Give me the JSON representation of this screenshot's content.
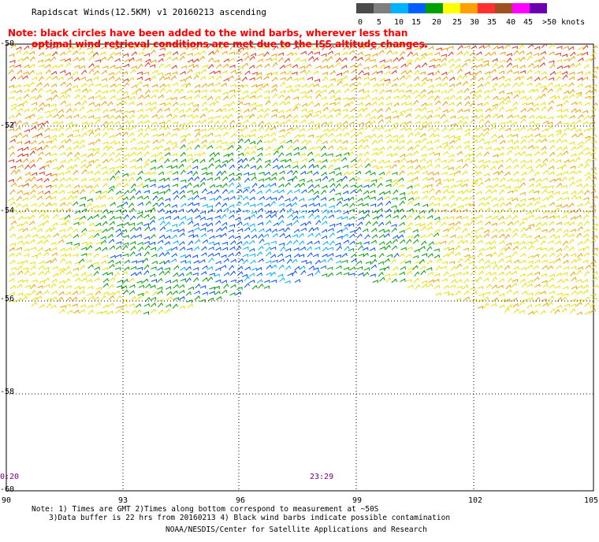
{
  "header": {
    "title": "Rapidscat Winds(12.5KM) v1 20160213 ascending",
    "note_line1": "Note: black circles have been added to the wind barbs, wherever less than",
    "note_line2": "optimal wind retrieval conditions are met due to the ISS altitude changes."
  },
  "legend": {
    "labels": [
      "0",
      "5",
      "10",
      "15",
      "20",
      "25",
      "30",
      "35",
      "40",
      "45",
      ">50 knots"
    ],
    "colors": [
      "#4a4a4a",
      "#7f7f7f",
      "#00b2ff",
      "#0060ff",
      "#00a000",
      "#ffff00",
      "#ffa000",
      "#ff3030",
      "#a05020",
      "#ff00ff",
      "#6a00b0"
    ]
  },
  "map": {
    "lat_labels": [
      "-50",
      "-52",
      "-54",
      "-56",
      "-58",
      "-60"
    ],
    "lon_labels": [
      "90",
      "93",
      "96",
      "99",
      "102",
      "105"
    ],
    "time_labels": [
      "0:20",
      "23:29"
    ]
  },
  "footer": {
    "line1": "Note: 1) Times are GMT 2)Times along bottom correspond to measurement at ~50S",
    "line2": "3)Data buffer is 22 hrs from 20160213 4) Black wind barbs indicate possible contamination",
    "line3": "NOAA/NESDIS/Center for Satellite Applications and Research"
  }
}
